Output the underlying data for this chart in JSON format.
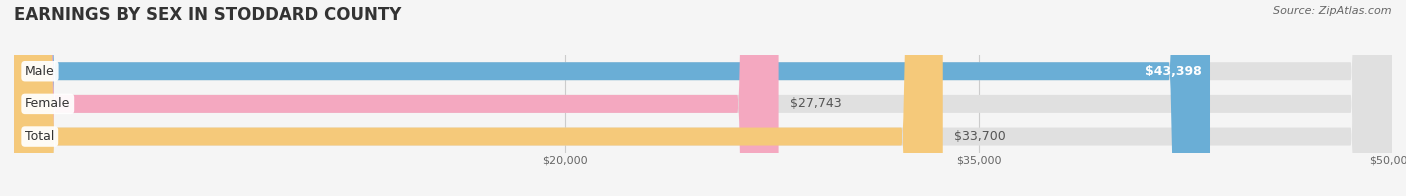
{
  "title": "EARNINGS BY SEX IN STODDARD COUNTY",
  "source": "Source: ZipAtlas.com",
  "categories": [
    "Male",
    "Female",
    "Total"
  ],
  "values": [
    43398,
    27743,
    33700
  ],
  "bar_colors": [
    "#6aaed6",
    "#f4a8c0",
    "#f5c97a"
  ],
  "xmin": 0,
  "xmax": 50000,
  "xticks": [
    20000,
    35000,
    50000
  ],
  "xtick_labels": [
    "$20,000",
    "$35,000",
    "$50,000"
  ],
  "value_labels": [
    "$43,398",
    "$27,743",
    "$33,700"
  ],
  "value_label_inside": [
    true,
    false,
    false
  ],
  "fig_width": 14.06,
  "fig_height": 1.96,
  "fig_bg_color": "#f5f5f5",
  "bar_height": 0.55,
  "title_fontsize": 12,
  "label_fontsize": 9,
  "value_fontsize": 9,
  "tick_fontsize": 8,
  "source_fontsize": 8
}
